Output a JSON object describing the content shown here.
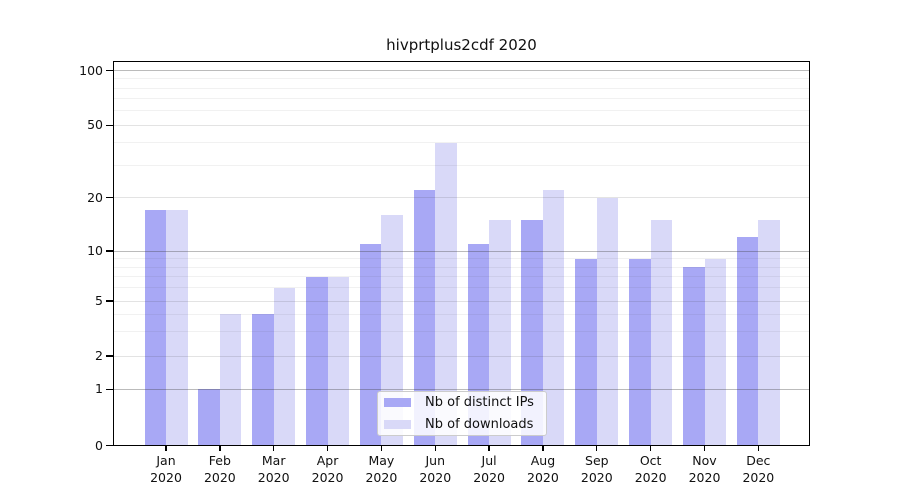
{
  "page": {
    "background": "#ffffff"
  },
  "chart_data": {
    "type": "bar",
    "title": "hivprtplus2cdf 2020",
    "categories": [
      "Jan",
      "Feb",
      "Mar",
      "Apr",
      "May",
      "Jun",
      "Jul",
      "Aug",
      "Sep",
      "Oct",
      "Nov",
      "Dec"
    ],
    "category_year": "2020",
    "series": [
      {
        "name": "Nb of distinct IPs",
        "color": "#a8a8f5",
        "values": [
          17,
          1,
          4,
          7,
          11,
          22,
          11,
          15,
          9,
          9,
          8,
          12
        ]
      },
      {
        "name": "Nb of downloads",
        "color": "#d9d9f8",
        "values": [
          17,
          4,
          6,
          7,
          16,
          40,
          15,
          22,
          20,
          15,
          9,
          15
        ]
      }
    ],
    "xlabel": "",
    "ylabel": "",
    "yscale": "log-like",
    "y_ticks": [
      0,
      1,
      2,
      5,
      10,
      20,
      50,
      100
    ],
    "y_decade_ticks": [
      1,
      10,
      100
    ],
    "y_minor_gridlines": [
      3,
      4,
      6,
      7,
      8,
      9,
      30,
      40,
      60,
      70,
      80,
      90
    ],
    "ylim": [
      0,
      100
    ],
    "grid": true,
    "legend_position": "bottom-center"
  }
}
